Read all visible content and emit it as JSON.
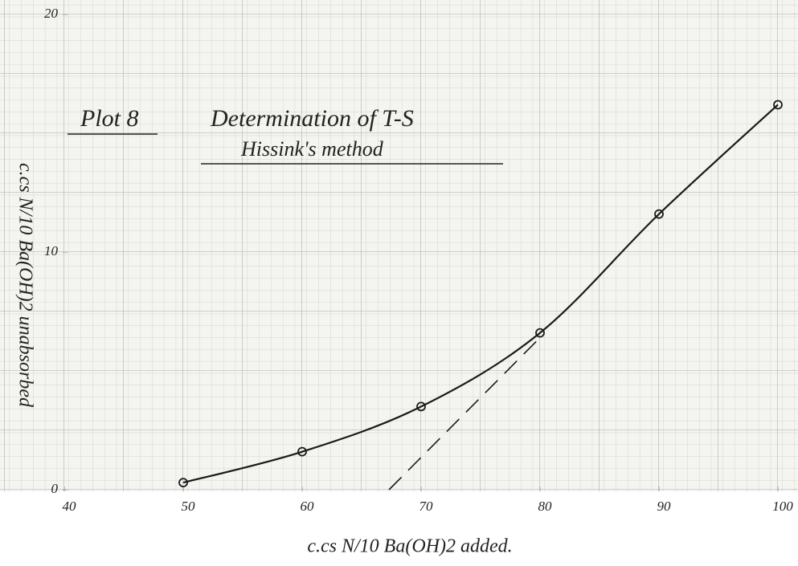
{
  "chart_data": {
    "type": "line",
    "plot_label": "Plot 8",
    "title": "Determination of T-S",
    "subtitle": "Hissink's method",
    "x_label": "c.cs N/10 Ba(OH)2 added.",
    "y_label": "c.cs N/10 Ba(OH)2 unabsorbed",
    "x": [
      50,
      60,
      70,
      80,
      90,
      100
    ],
    "values": [
      0.3,
      1.6,
      3.5,
      6.6,
      11.6,
      16.2
    ],
    "tangent": {
      "x": [
        67.3,
        80
      ],
      "values": [
        0,
        6.4
      ]
    },
    "xlim": [
      40,
      100
    ],
    "ylim": [
      0,
      20
    ],
    "xticks": [
      40,
      50,
      60,
      70,
      80,
      90,
      100
    ],
    "yticks": [
      0,
      10,
      20
    ],
    "grid": true,
    "color": "#1a1a1a"
  }
}
